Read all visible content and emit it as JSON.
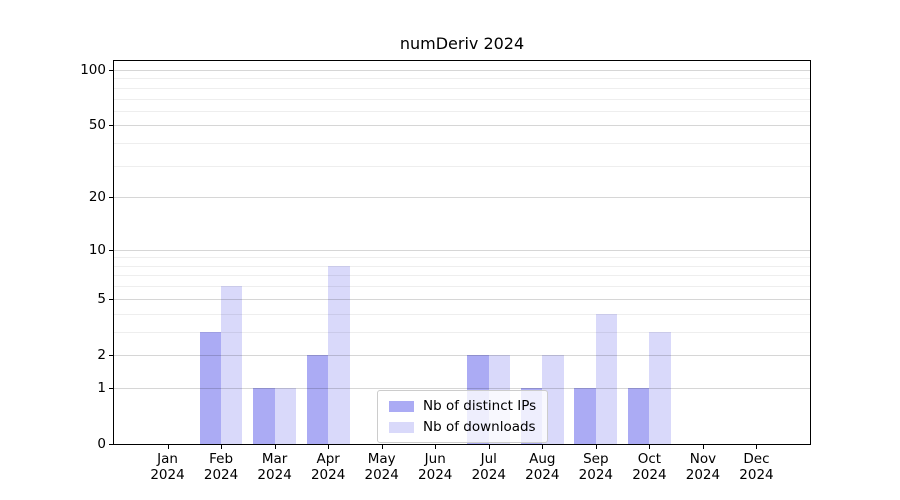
{
  "figure": {
    "background": "#ffffff",
    "title": "numDeriv 2024"
  },
  "chart_data": {
    "type": "bar",
    "title": "numDeriv 2024",
    "categories": [
      "Jan",
      "Feb",
      "Mar",
      "Apr",
      "May",
      "Jun",
      "Jul",
      "Aug",
      "Sep",
      "Oct",
      "Nov",
      "Dec"
    ],
    "year": "2024",
    "series": [
      {
        "name": "Nb of distinct IPs",
        "color": "rgba(138,138,240,0.72)",
        "values": [
          0,
          3,
          1,
          2,
          0,
          0,
          2,
          1,
          1,
          1,
          0,
          0
        ]
      },
      {
        "name": "Nb of downloads",
        "color": "rgba(138,138,240,0.32)",
        "values": [
          0,
          6,
          1,
          8,
          0,
          0,
          2,
          2,
          4,
          3,
          0,
          0
        ]
      }
    ],
    "xlabel": "",
    "ylabel": "",
    "y_scale": "log1p",
    "ylim": [
      0,
      100
    ],
    "y_tick_values": [
      0,
      1,
      2,
      5,
      10,
      20,
      50,
      100
    ],
    "grid_values": [
      1,
      2,
      3,
      4,
      5,
      6,
      7,
      8,
      9,
      10,
      20,
      30,
      40,
      50,
      60,
      70,
      80,
      90,
      100
    ],
    "grid": "on",
    "legend_position": "lower center"
  }
}
